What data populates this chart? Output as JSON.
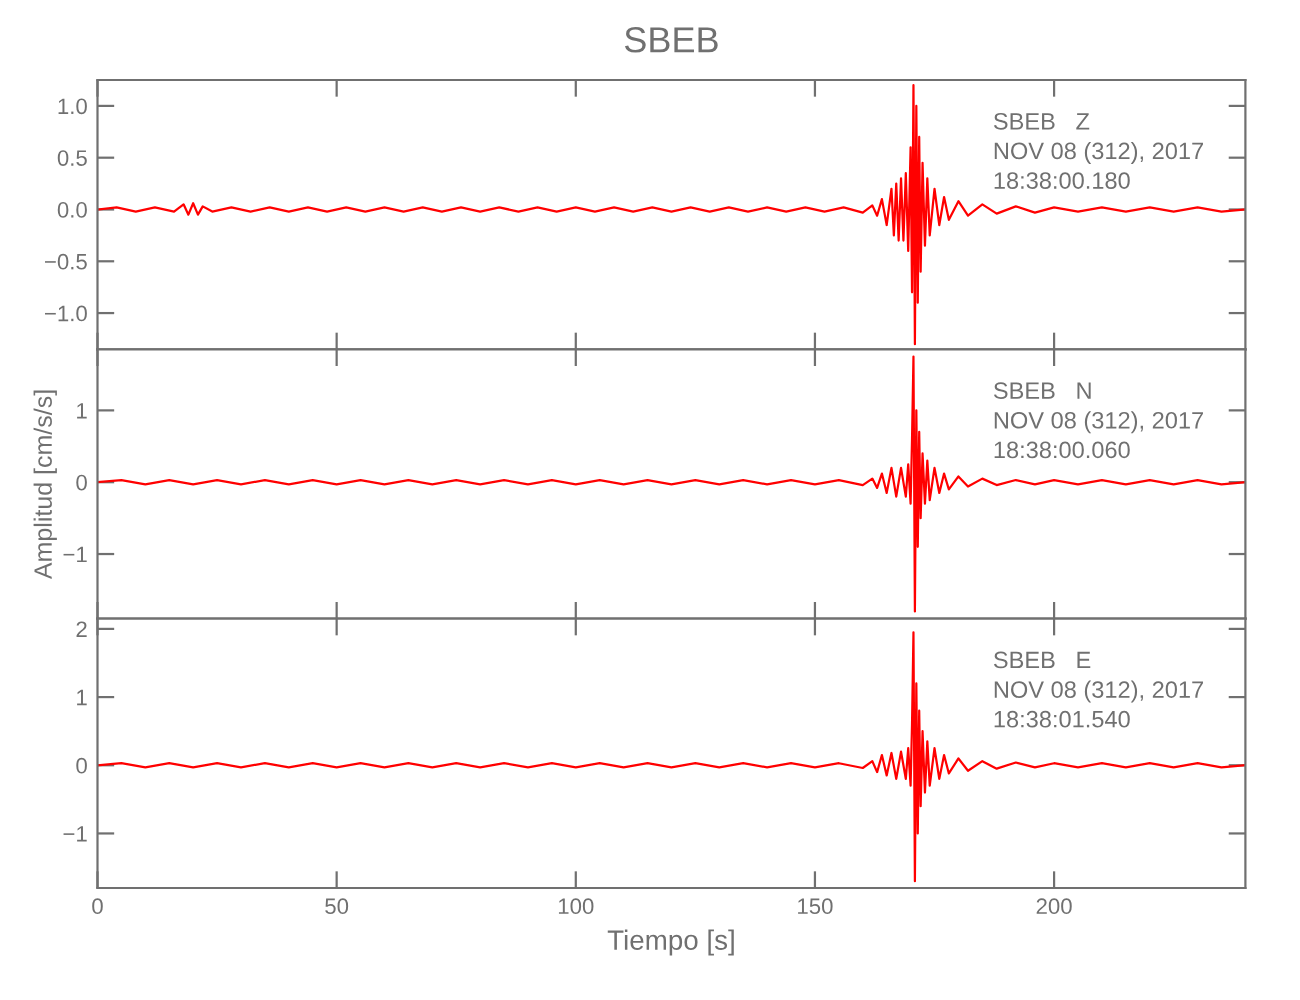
{
  "chart_data": [
    {
      "type": "line",
      "title": "SBEB",
      "tick_labels": "y",
      "xlim": [
        0,
        240
      ],
      "xticks": [
        0,
        50,
        100,
        150,
        200
      ],
      "ylim": [
        -1.35,
        1.25
      ],
      "yticks": [
        {
          "value": 1.0,
          "label": "1.0"
        },
        {
          "value": 0.5,
          "label": "0.5"
        },
        {
          "value": 0.0,
          "label": "0.0"
        },
        {
          "value": -0.5,
          "label": "−0.5"
        },
        {
          "value": -1.0,
          "label": "−1.0"
        }
      ],
      "annotations": [
        "SBEB   Z",
        "NOV 08 (312), 2017",
        "18:38:00.180"
      ],
      "series": [
        {
          "color": "#ff0000",
          "x": [
            0,
            4,
            8,
            12,
            16,
            18,
            19,
            20,
            21,
            22,
            24,
            28,
            32,
            36,
            40,
            44,
            48,
            52,
            56,
            60,
            64,
            68,
            72,
            76,
            80,
            84,
            88,
            92,
            96,
            100,
            104,
            108,
            112,
            116,
            120,
            124,
            128,
            132,
            136,
            140,
            144,
            148,
            152,
            156,
            160,
            162,
            163,
            164,
            165,
            166,
            166.5,
            167,
            167.5,
            168,
            168.5,
            169,
            169.5,
            170,
            170.3,
            170.6,
            170.9,
            171.2,
            171.5,
            171.8,
            172.1,
            172.5,
            173,
            173.5,
            174,
            175,
            176,
            177,
            178,
            180,
            182,
            185,
            188,
            192,
            196,
            200,
            205,
            210,
            215,
            220,
            225,
            230,
            235,
            240
          ],
          "values": [
            0.0,
            0.02,
            -0.02,
            0.02,
            -0.02,
            0.05,
            -0.05,
            0.06,
            -0.05,
            0.03,
            -0.02,
            0.02,
            -0.02,
            0.02,
            -0.02,
            0.02,
            -0.02,
            0.02,
            -0.02,
            0.02,
            -0.02,
            0.02,
            -0.02,
            0.02,
            -0.02,
            0.02,
            -0.02,
            0.02,
            -0.02,
            0.02,
            -0.02,
            0.02,
            -0.02,
            0.02,
            -0.02,
            0.02,
            -0.02,
            0.02,
            -0.02,
            0.02,
            -0.02,
            0.02,
            -0.02,
            0.02,
            -0.03,
            0.04,
            -0.06,
            0.1,
            -0.15,
            0.2,
            -0.25,
            0.25,
            -0.3,
            0.3,
            -0.3,
            0.35,
            -0.4,
            0.6,
            -0.8,
            1.2,
            -1.3,
            1.0,
            -0.9,
            0.7,
            -0.6,
            0.45,
            -0.35,
            0.3,
            -0.25,
            0.2,
            -0.15,
            0.12,
            -0.1,
            0.08,
            -0.06,
            0.05,
            -0.04,
            0.03,
            -0.03,
            0.02,
            -0.02,
            0.02,
            -0.02,
            0.02,
            -0.02,
            0.02,
            -0.02,
            0.0
          ]
        }
      ]
    },
    {
      "type": "line",
      "ylabel": "Amplitud [cm/s/s]",
      "tick_labels": "y",
      "xlim": [
        0,
        240
      ],
      "xticks": [
        0,
        50,
        100,
        150,
        200
      ],
      "ylim": [
        -1.9,
        1.85
      ],
      "yticks": [
        {
          "value": 1,
          "label": "1"
        },
        {
          "value": 0,
          "label": "0"
        },
        {
          "value": -1,
          "label": "−1"
        }
      ],
      "annotations": [
        "SBEB   N",
        "NOV 08 (312), 2017",
        "18:38:00.060"
      ],
      "series": [
        {
          "color": "#ff0000",
          "x": [
            0,
            5,
            10,
            15,
            20,
            25,
            30,
            35,
            40,
            45,
            50,
            55,
            60,
            65,
            70,
            75,
            80,
            85,
            90,
            95,
            100,
            105,
            110,
            115,
            120,
            125,
            130,
            135,
            140,
            145,
            150,
            155,
            160,
            162,
            163,
            164,
            165,
            166,
            167,
            168,
            169,
            169.5,
            170,
            170.3,
            170.6,
            170.9,
            171.2,
            171.5,
            171.8,
            172.1,
            172.5,
            173,
            173.5,
            174,
            175,
            176,
            177,
            178,
            180,
            182,
            185,
            188,
            192,
            196,
            200,
            205,
            210,
            215,
            220,
            225,
            230,
            235,
            240
          ],
          "values": [
            0.0,
            0.03,
            -0.03,
            0.03,
            -0.03,
            0.03,
            -0.03,
            0.03,
            -0.03,
            0.03,
            -0.03,
            0.03,
            -0.03,
            0.03,
            -0.03,
            0.03,
            -0.03,
            0.03,
            -0.03,
            0.03,
            -0.03,
            0.03,
            -0.03,
            0.03,
            -0.03,
            0.03,
            -0.03,
            0.03,
            -0.03,
            0.03,
            -0.03,
            0.03,
            -0.04,
            0.05,
            -0.08,
            0.12,
            -0.15,
            0.2,
            -0.2,
            0.2,
            -0.2,
            0.25,
            -0.3,
            0.6,
            1.75,
            -1.8,
            1.0,
            -0.9,
            0.7,
            -0.5,
            0.4,
            -0.3,
            0.3,
            -0.25,
            0.2,
            -0.15,
            0.12,
            -0.1,
            0.08,
            -0.06,
            0.05,
            -0.04,
            0.03,
            -0.03,
            0.03,
            -0.03,
            0.03,
            -0.03,
            0.03,
            -0.03,
            0.03,
            -0.03,
            0.0
          ]
        }
      ]
    },
    {
      "type": "line",
      "xlabel": "Tiempo [s]",
      "xlim": [
        0,
        240
      ],
      "xticks": [
        0,
        50,
        100,
        150,
        200
      ],
      "ylim": [
        -1.8,
        2.15
      ],
      "yticks": [
        {
          "value": 2,
          "label": "2"
        },
        {
          "value": 1,
          "label": "1"
        },
        {
          "value": 0,
          "label": "0"
        },
        {
          "value": -1,
          "label": "−1"
        }
      ],
      "annotations": [
        "SBEB   E",
        "NOV 08 (312), 2017",
        "18:38:01.540"
      ],
      "series": [
        {
          "color": "#ff0000",
          "x": [
            0,
            5,
            10,
            15,
            20,
            25,
            30,
            35,
            40,
            45,
            50,
            55,
            60,
            65,
            70,
            75,
            80,
            85,
            90,
            95,
            100,
            105,
            110,
            115,
            120,
            125,
            130,
            135,
            140,
            145,
            150,
            155,
            160,
            162,
            163,
            164,
            165,
            166,
            167,
            168,
            169,
            169.5,
            170,
            170.3,
            170.6,
            170.9,
            171.2,
            171.5,
            171.8,
            172.1,
            172.5,
            173,
            173.5,
            174,
            175,
            176,
            177,
            178,
            180,
            182,
            185,
            188,
            192,
            196,
            200,
            205,
            210,
            215,
            220,
            225,
            230,
            235,
            240
          ],
          "values": [
            0.0,
            0.03,
            -0.03,
            0.03,
            -0.03,
            0.03,
            -0.03,
            0.03,
            -0.03,
            0.03,
            -0.03,
            0.03,
            -0.03,
            0.03,
            -0.03,
            0.03,
            -0.03,
            0.03,
            -0.03,
            0.03,
            -0.03,
            0.03,
            -0.03,
            0.03,
            -0.03,
            0.03,
            -0.03,
            0.03,
            -0.03,
            0.03,
            -0.03,
            0.03,
            -0.04,
            0.06,
            -0.1,
            0.15,
            -0.15,
            0.18,
            -0.2,
            0.2,
            -0.2,
            0.25,
            -0.3,
            0.6,
            1.95,
            -1.7,
            1.2,
            -1.0,
            0.8,
            -0.6,
            0.5,
            -0.4,
            0.35,
            -0.3,
            0.25,
            -0.2,
            0.15,
            -0.12,
            0.1,
            -0.08,
            0.06,
            -0.05,
            0.04,
            -0.03,
            0.03,
            -0.03,
            0.03,
            -0.03,
            0.03,
            -0.03,
            0.03,
            -0.03,
            0.0
          ]
        }
      ]
    }
  ]
}
